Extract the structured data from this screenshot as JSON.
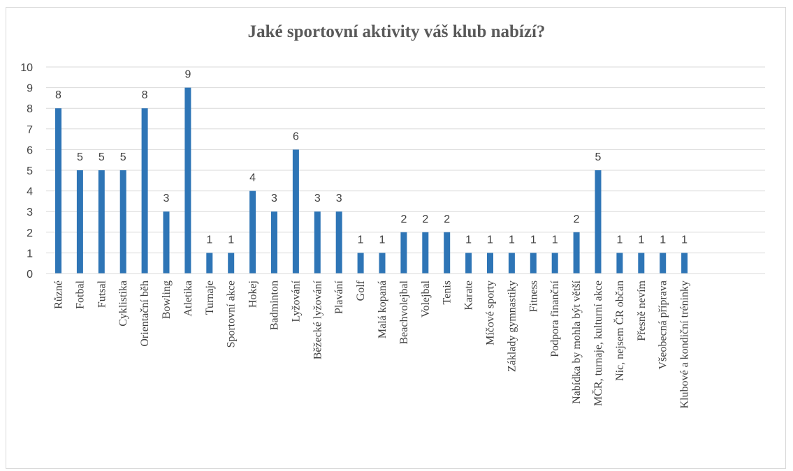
{
  "chart_data": {
    "type": "bar",
    "title": "Jaké sportovní aktivity váš klub nabízí?",
    "xlabel": "",
    "ylabel": "",
    "ylim": [
      0,
      10
    ],
    "yticks": [
      0,
      1,
      2,
      3,
      4,
      5,
      6,
      7,
      8,
      9,
      10
    ],
    "grid": true,
    "legend": "none",
    "bar_color": "#2e75b6",
    "categories": [
      "Různé",
      "Fotbal",
      "Futsal",
      "Cyklistika",
      "Orientační běh",
      "Bowling",
      "Atletika",
      "Turnaje",
      "Sportovní akce",
      "Hokej",
      "Badminton",
      "Lyžování",
      "Běžecké lyžování",
      "Plavání",
      "Golf",
      "Malá kopaná",
      "Beachvolejbal",
      "Volejbal",
      "Tenis",
      "Karate",
      "Míčové sporty",
      "Základy gymnastiky",
      "Fitness",
      "Podpora finanční",
      "Nabídka by mohla být větší",
      "MČR, turnaje, kulturní akce",
      "Nic, nejsem ČR občan",
      "Přesně nevím",
      "Všeobecná příprava",
      "Klubové a kondiční tréninky"
    ],
    "values": [
      8,
      5,
      5,
      5,
      8,
      3,
      9,
      1,
      1,
      4,
      3,
      6,
      3,
      3,
      1,
      1,
      2,
      2,
      2,
      1,
      1,
      1,
      1,
      1,
      2,
      5,
      1,
      1,
      1,
      1
    ]
  }
}
